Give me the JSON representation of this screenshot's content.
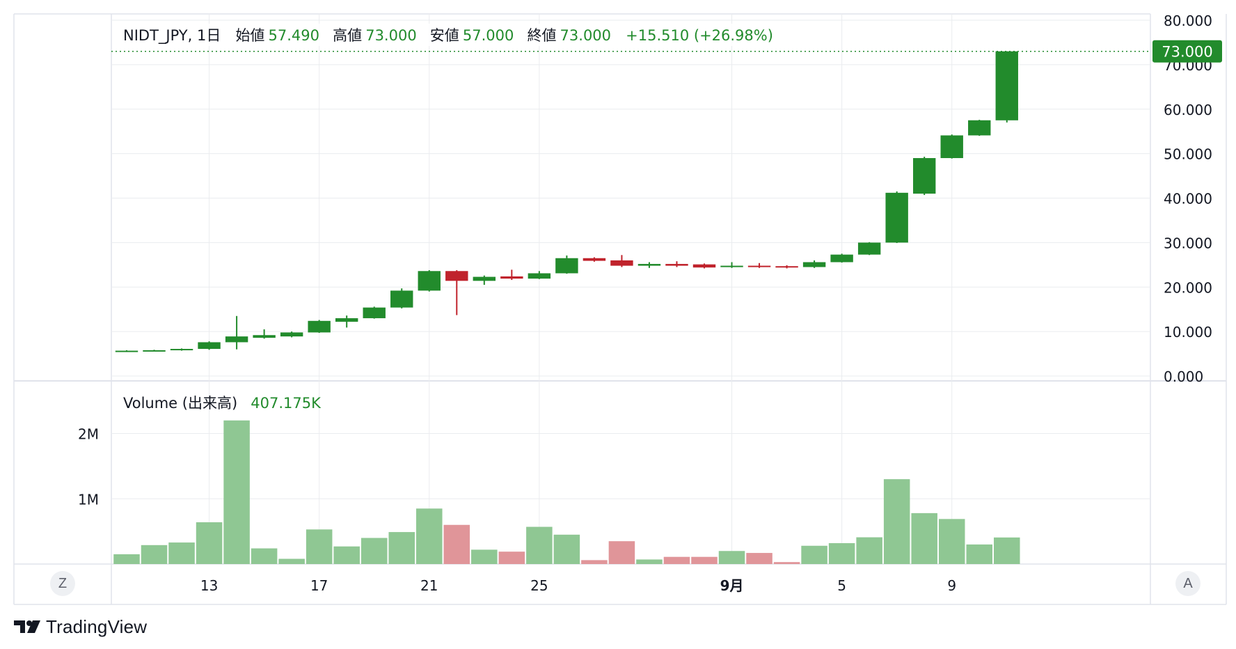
{
  "symbol": "NIDT_JPY, 1日",
  "ohlc": {
    "open_label": "始値",
    "open": "57.490",
    "high_label": "高値",
    "high": "73.000",
    "low_label": "安値",
    "low": "57.000",
    "close_label": "終値",
    "close": "73.000",
    "change": "+15.510 (+26.98%)"
  },
  "price_badge": "73.000",
  "volume_legend": {
    "label": "Volume (出来高)",
    "value": "407.175K"
  },
  "scale_buttons": {
    "left": "Z",
    "right": "A"
  },
  "brand": "TradingView",
  "colors": {
    "up": "#228b2c",
    "down": "#c0232c",
    "vol_up": "#8fc793",
    "vol_down": "#e09599",
    "grid": "#eaecef",
    "badge": "#228b2c"
  },
  "chart_data": {
    "type": "candlestick",
    "price_ticks": [
      "0.000",
      "10.000",
      "20.000",
      "30.000",
      "40.000",
      "50.000",
      "60.000",
      "70.000",
      "80.000"
    ],
    "price_range": [
      0,
      80
    ],
    "volume_ticks": [
      "1M",
      "2M"
    ],
    "x_labels": [
      {
        "text": "13",
        "index": 3
      },
      {
        "text": "17",
        "index": 7
      },
      {
        "text": "21",
        "index": 11
      },
      {
        "text": "25",
        "index": 15
      },
      {
        "text": "9月",
        "index": 22,
        "bold": true
      },
      {
        "text": "5",
        "index": 26
      },
      {
        "text": "9",
        "index": 30
      }
    ],
    "candles": [
      {
        "o": 5.6,
        "h": 5.8,
        "l": 5.5,
        "c": 5.7
      },
      {
        "o": 5.7,
        "h": 5.9,
        "l": 5.6,
        "c": 5.8
      },
      {
        "o": 5.8,
        "h": 6.2,
        "l": 5.7,
        "c": 6.1
      },
      {
        "o": 6.1,
        "h": 7.8,
        "l": 5.9,
        "c": 7.6
      },
      {
        "o": 7.6,
        "h": 13.5,
        "l": 6.0,
        "c": 8.9
      },
      {
        "o": 8.6,
        "h": 10.5,
        "l": 8.4,
        "c": 9.2
      },
      {
        "o": 8.9,
        "h": 10.0,
        "l": 8.7,
        "c": 9.8
      },
      {
        "o": 9.8,
        "h": 12.6,
        "l": 9.7,
        "c": 12.4
      },
      {
        "o": 12.2,
        "h": 13.6,
        "l": 10.9,
        "c": 13.0
      },
      {
        "o": 13.0,
        "h": 15.6,
        "l": 12.9,
        "c": 15.4
      },
      {
        "o": 15.4,
        "h": 19.7,
        "l": 15.2,
        "c": 19.2
      },
      {
        "o": 19.2,
        "h": 23.8,
        "l": 19.0,
        "c": 23.6
      },
      {
        "o": 23.6,
        "h": 23.8,
        "l": 13.7,
        "c": 21.4
      },
      {
        "o": 21.4,
        "h": 22.6,
        "l": 20.5,
        "c": 22.3
      },
      {
        "o": 22.4,
        "h": 23.9,
        "l": 21.6,
        "c": 21.9
      },
      {
        "o": 21.9,
        "h": 23.6,
        "l": 21.8,
        "c": 23.1
      },
      {
        "o": 23.1,
        "h": 27.1,
        "l": 23.0,
        "c": 26.5
      },
      {
        "o": 26.5,
        "h": 26.7,
        "l": 25.7,
        "c": 25.9
      },
      {
        "o": 26.0,
        "h": 27.2,
        "l": 24.5,
        "c": 24.8
      },
      {
        "o": 24.8,
        "h": 25.6,
        "l": 24.3,
        "c": 25.2
      },
      {
        "o": 25.2,
        "h": 25.8,
        "l": 24.5,
        "c": 24.8
      },
      {
        "o": 25.1,
        "h": 25.3,
        "l": 24.2,
        "c": 24.4
      },
      {
        "o": 24.6,
        "h": 25.6,
        "l": 24.3,
        "c": 24.8
      },
      {
        "o": 24.8,
        "h": 25.4,
        "l": 24.3,
        "c": 24.6
      },
      {
        "o": 24.7,
        "h": 24.9,
        "l": 24.2,
        "c": 24.4
      },
      {
        "o": 24.5,
        "h": 26.0,
        "l": 24.3,
        "c": 25.6
      },
      {
        "o": 25.6,
        "h": 27.5,
        "l": 25.5,
        "c": 27.3
      },
      {
        "o": 27.3,
        "h": 30.1,
        "l": 27.2,
        "c": 30.0
      },
      {
        "o": 30.0,
        "h": 41.5,
        "l": 29.9,
        "c": 41.2
      },
      {
        "o": 41.0,
        "h": 49.3,
        "l": 40.7,
        "c": 49.0
      },
      {
        "o": 49.0,
        "h": 54.3,
        "l": 48.9,
        "c": 54.1
      },
      {
        "o": 54.1,
        "h": 57.6,
        "l": 54.0,
        "c": 57.5
      },
      {
        "o": 57.49,
        "h": 73.0,
        "l": 57.0,
        "c": 73.0
      }
    ],
    "volumes": [
      150000,
      290000,
      330000,
      640000,
      2200000,
      240000,
      80000,
      530000,
      270000,
      400000,
      490000,
      850000,
      600000,
      220000,
      190000,
      570000,
      450000,
      60000,
      350000,
      70000,
      110000,
      110000,
      200000,
      170000,
      30000,
      280000,
      320000,
      410000,
      1300000,
      780000,
      690000,
      300000,
      407175
    ]
  }
}
